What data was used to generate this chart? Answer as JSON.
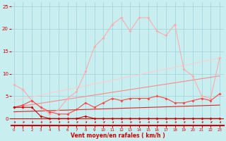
{
  "xlabel": "Vent moyen/en rafales ( km/h )",
  "bg_color": "#c8eef0",
  "grid_color": "#a0d0d8",
  "x_ticks": [
    0,
    1,
    2,
    3,
    4,
    5,
    6,
    7,
    8,
    9,
    10,
    11,
    12,
    13,
    14,
    15,
    16,
    17,
    18,
    19,
    20,
    21,
    22,
    23
  ],
  "ylim": [
    -1.5,
    26
  ],
  "xlim": [
    -0.3,
    23.5
  ],
  "yticks": [
    0,
    5,
    10,
    15,
    20,
    25
  ],
  "line1_x": [
    0,
    1,
    2,
    3,
    4,
    5,
    6,
    7,
    8,
    9,
    10,
    11,
    12,
    13,
    14,
    15,
    16,
    17,
    18,
    19,
    20,
    21,
    22,
    23
  ],
  "line1_y": [
    2.5,
    2.5,
    2.5,
    0.5,
    0.0,
    0.0,
    0.0,
    0.0,
    0.5,
    0.0,
    0.0,
    0.0,
    0.0,
    0.0,
    0.0,
    0.0,
    0.0,
    0.0,
    0.0,
    0.0,
    0.0,
    0.0,
    0.0,
    0.0
  ],
  "line1_color": "#cc0000",
  "line1_marker": "D",
  "line1_ms": 2.0,
  "line2_x": [
    0,
    1,
    2,
    3,
    4,
    5,
    6,
    7,
    8,
    9,
    10,
    11,
    12,
    13,
    14,
    15,
    16,
    17,
    18,
    19,
    20,
    21,
    22,
    23
  ],
  "line2_y": [
    2.5,
    3.0,
    4.0,
    2.5,
    1.5,
    1.0,
    1.0,
    2.0,
    3.5,
    2.5,
    3.5,
    4.5,
    4.0,
    4.5,
    4.5,
    4.5,
    5.0,
    4.5,
    3.5,
    3.5,
    4.0,
    4.5,
    4.0,
    5.5
  ],
  "line2_color": "#ff4444",
  "line2_marker": "D",
  "line2_ms": 2.0,
  "line3_x": [
    0,
    1,
    2,
    3,
    4,
    5,
    6,
    7,
    8,
    9,
    10,
    11,
    12,
    13,
    14,
    15,
    16,
    17,
    18,
    19,
    20,
    21,
    22,
    23
  ],
  "line3_y": [
    7.5,
    6.5,
    4.0,
    2.5,
    1.0,
    2.0,
    4.5,
    6.0,
    10.5,
    16.0,
    18.0,
    21.0,
    22.5,
    19.5,
    22.5,
    22.5,
    19.5,
    18.5,
    21.0,
    11.0,
    9.5,
    5.0,
    4.5,
    13.5
  ],
  "line3_color": "#ffaaaa",
  "line3_marker": "D",
  "line3_ms": 2.0,
  "trend1_x": [
    0,
    23
  ],
  "trend1_y": [
    1.5,
    3.0
  ],
  "trend1_color": "#dd2222",
  "trend2_x": [
    0,
    23
  ],
  "trend2_y": [
    2.5,
    9.5
  ],
  "trend2_color": "#ff8888",
  "trend3_x": [
    0,
    23
  ],
  "trend3_y": [
    4.0,
    13.5
  ],
  "trend3_color": "#ffcccc",
  "line_color_axis": "#cc0000",
  "arrow_x_positions": [
    0,
    1,
    2,
    3,
    4,
    5,
    6,
    7,
    8,
    9,
    10,
    11,
    12,
    13,
    14,
    15,
    16,
    17,
    18,
    19,
    20,
    21,
    22,
    23
  ]
}
